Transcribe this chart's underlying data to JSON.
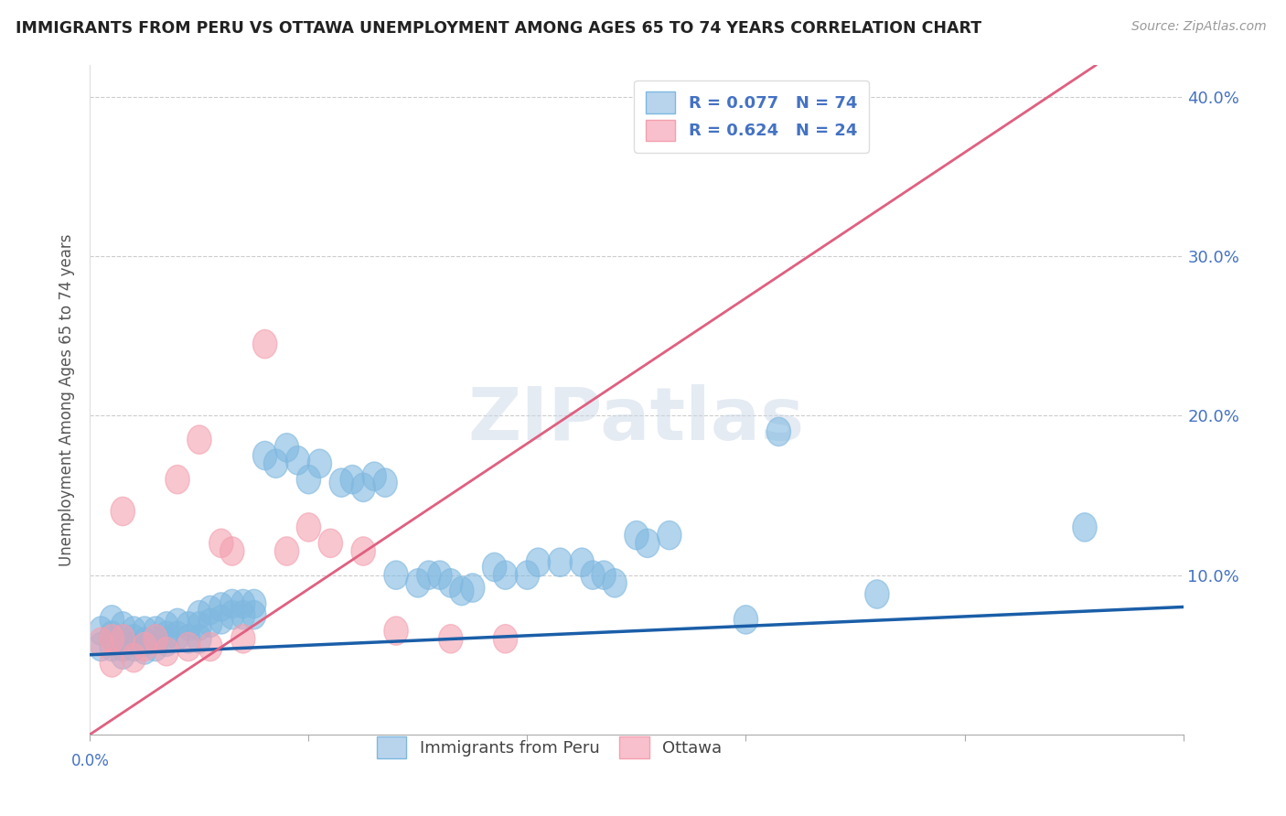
{
  "title": "IMMIGRANTS FROM PERU VS OTTAWA UNEMPLOYMENT AMONG AGES 65 TO 74 YEARS CORRELATION CHART",
  "source": "Source: ZipAtlas.com",
  "ylabel": "Unemployment Among Ages 65 to 74 years",
  "xlim": [
    0.0,
    0.1
  ],
  "ylim": [
    0.0,
    0.42
  ],
  "ytick_vals": [
    0.0,
    0.1,
    0.2,
    0.3,
    0.4
  ],
  "blue_color": "#7fb8e0",
  "pink_color": "#f4a0b0",
  "blue_line_color": "#1a5ea8",
  "pink_line_color": "#e06080",
  "pink_line_dashed_color": "#e8a0b0",
  "background_color": "#ffffff",
  "grid_color": "#cccccc",
  "R_blue": 0.077,
  "N_blue": 74,
  "R_pink": 0.624,
  "N_pink": 24,
  "blue_line_y0": 0.05,
  "blue_line_y1": 0.08,
  "pink_line_y0": 0.0,
  "pink_line_y1": 0.42,
  "pink_line_x0": 0.0,
  "pink_line_x1": 0.092
}
